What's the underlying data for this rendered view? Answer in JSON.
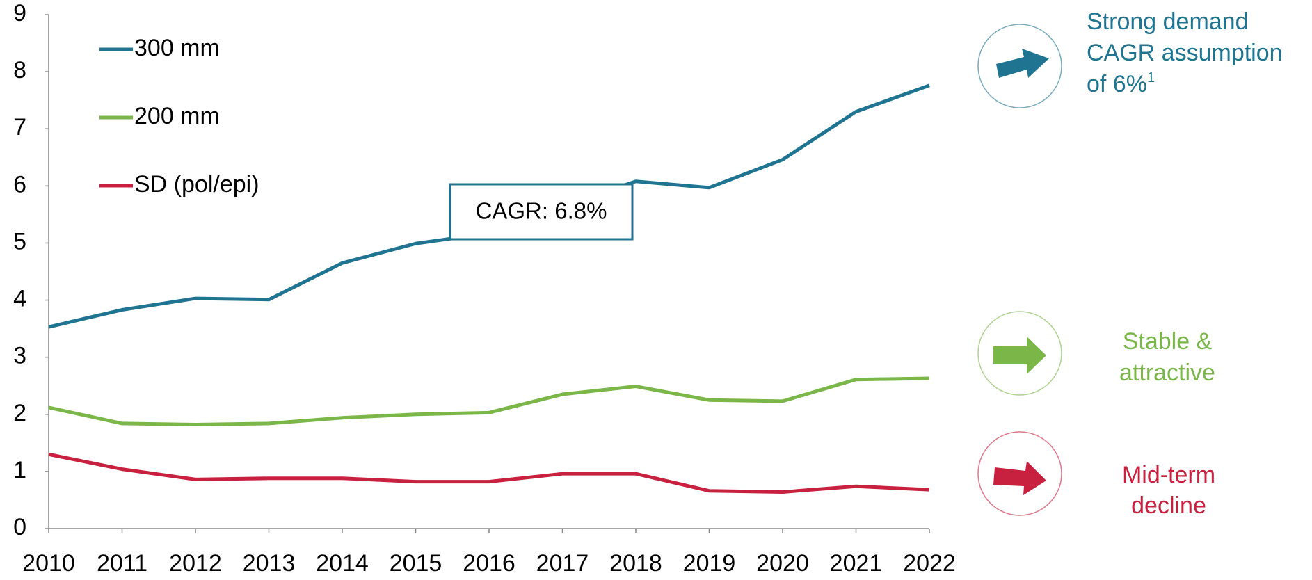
{
  "chart_data": {
    "type": "line",
    "x": [
      2010,
      2011,
      2012,
      2013,
      2014,
      2015,
      2016,
      2017,
      2018,
      2019,
      2020,
      2021,
      2022
    ],
    "xlim": [
      2010,
      2022
    ],
    "xticks": [
      2010,
      2011,
      2012,
      2013,
      2014,
      2015,
      2016,
      2017,
      2018,
      2019,
      2020,
      2021,
      2022
    ],
    "ylim": [
      0,
      9
    ],
    "yticks": [
      0,
      1,
      2,
      3,
      4,
      5,
      6,
      7,
      8,
      9
    ],
    "grid": false,
    "legend": "upper left",
    "series": [
      {
        "name": "300 mm",
        "color": "#1f7591",
        "values": [
          3.53,
          3.83,
          4.03,
          4.01,
          4.65,
          4.99,
          5.17,
          5.65,
          6.08,
          5.97,
          6.46,
          7.3,
          7.76
        ]
      },
      {
        "name": "200 mm",
        "color": "#7ab648",
        "values": [
          2.12,
          1.84,
          1.82,
          1.84,
          1.94,
          2.0,
          2.03,
          2.35,
          2.49,
          2.25,
          2.23,
          2.61,
          2.63
        ]
      },
      {
        "name": "SD (pol/epi)",
        "color": "#c8203f",
        "values": [
          1.3,
          1.04,
          0.86,
          0.88,
          0.88,
          0.82,
          0.82,
          0.96,
          0.96,
          0.66,
          0.64,
          0.74,
          0.68
        ]
      }
    ],
    "annotations": [
      {
        "text": "CAGR: 6.8%"
      }
    ],
    "outlook": [
      {
        "lines": [
          "Strong demand",
          "CAGR assumption",
          "of 6%"
        ],
        "sup": "1",
        "color": "#1f7591"
      },
      {
        "lines": [
          "Stable &",
          "attractive"
        ],
        "color": "#7ab648"
      },
      {
        "lines": [
          "Mid-term",
          "decline"
        ],
        "color": "#c8203f"
      }
    ]
  }
}
